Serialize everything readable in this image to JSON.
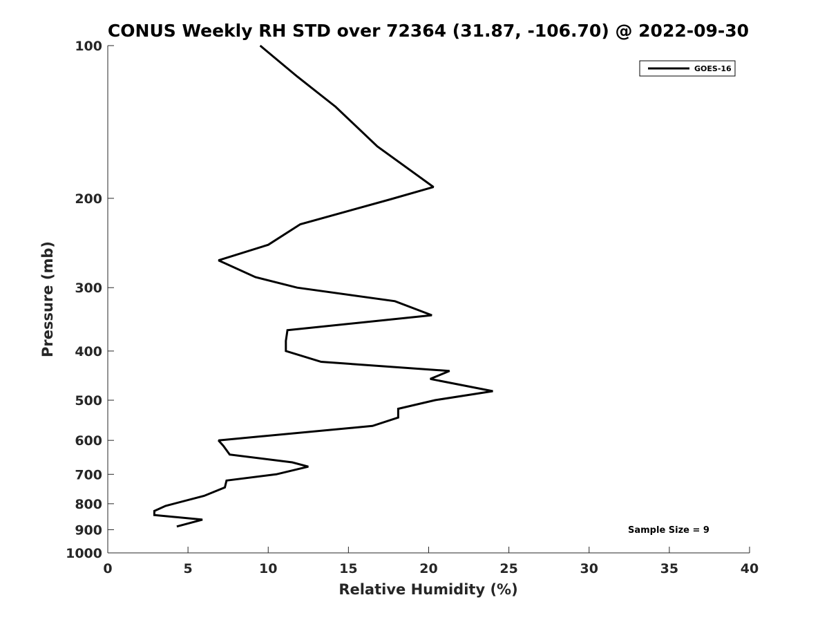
{
  "chart_data": {
    "type": "line",
    "title": "CONUS Weekly RH STD over 72364 (31.87, -106.70) @ 2022-09-30",
    "xlabel": "Relative Humidity (%)",
    "ylabel": "Pressure (mb)",
    "xlim": [
      0,
      40
    ],
    "ylim": [
      1000,
      100
    ],
    "yscale": "log",
    "y_reversed": true,
    "xticks": [
      0,
      5,
      10,
      15,
      20,
      25,
      30,
      35,
      40
    ],
    "yticks": [
      100,
      200,
      300,
      400,
      500,
      600,
      700,
      800,
      900,
      1000
    ],
    "grid": false,
    "legend_position": "top-right",
    "annotation": "Sample Size = 9",
    "series": [
      {
        "name": "GOES-16",
        "color": "#000000",
        "x": [
          9.5,
          11.8,
          14.2,
          16.8,
          20.3,
          17.6,
          12.0,
          10.0,
          6.9,
          9.2,
          11.8,
          17.9,
          20.2,
          11.2,
          11.1,
          11.1,
          13.3,
          21.3,
          20.1,
          24.0,
          20.4,
          18.1,
          18.1,
          16.5,
          6.9,
          7.2,
          7.6,
          11.5,
          12.5,
          10.5,
          7.4,
          7.3,
          6.0,
          3.6,
          2.9,
          2.9,
          5.9,
          4.3
        ],
        "y": [
          100,
          115,
          132,
          158,
          190,
          201,
          225,
          247,
          265,
          286,
          300,
          319,
          340,
          364,
          382,
          400,
          420,
          438,
          454,
          480,
          500,
          520,
          541,
          562,
          600,
          615,
          640,
          663,
          676,
          700,
          720,
          743,
          772,
          808,
          827,
          842,
          860,
          887
        ]
      }
    ]
  }
}
